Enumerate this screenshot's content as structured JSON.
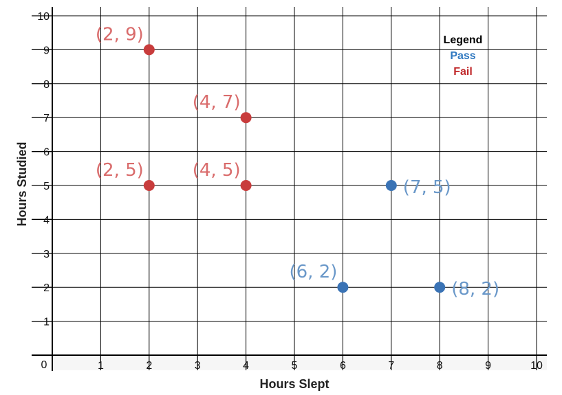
{
  "chart_data": {
    "type": "scatter",
    "title": "",
    "xlabel": "Hours Slept",
    "ylabel": "Hours Studied",
    "xlim": [
      0,
      10
    ],
    "ylim": [
      0,
      10
    ],
    "x_ticks": [
      "1",
      "2",
      "3",
      "4",
      "5",
      "6",
      "7",
      "8",
      "9",
      "10"
    ],
    "y_ticks": [
      "1",
      "2",
      "3",
      "4",
      "5",
      "6",
      "7",
      "8",
      "9",
      "10"
    ],
    "origin_label": "0",
    "grid": true,
    "legend": {
      "title": "Legend",
      "placement": "top-right",
      "entries": [
        {
          "label": "Pass",
          "color": "#2f78c0"
        },
        {
          "label": "Fail",
          "color": "#c0282a"
        }
      ]
    },
    "series": [
      {
        "name": "Fail",
        "color": "#c83c3c",
        "label_color": "#d96b6b",
        "points": [
          {
            "x": 2,
            "y": 9,
            "label": "(2, 9)"
          },
          {
            "x": 4,
            "y": 7,
            "label": "(4, 7)"
          },
          {
            "x": 2,
            "y": 5,
            "label": "(2, 5)"
          },
          {
            "x": 4,
            "y": 5,
            "label": "(4, 5)"
          }
        ]
      },
      {
        "name": "Pass",
        "color": "#3a73b5",
        "label_color": "#6a98c9",
        "points": [
          {
            "x": 7,
            "y": 5,
            "label": "(7, 5)"
          },
          {
            "x": 6,
            "y": 2,
            "label": "(6, 2)"
          },
          {
            "x": 8,
            "y": 2,
            "label": "(8, 2)"
          }
        ]
      }
    ]
  }
}
